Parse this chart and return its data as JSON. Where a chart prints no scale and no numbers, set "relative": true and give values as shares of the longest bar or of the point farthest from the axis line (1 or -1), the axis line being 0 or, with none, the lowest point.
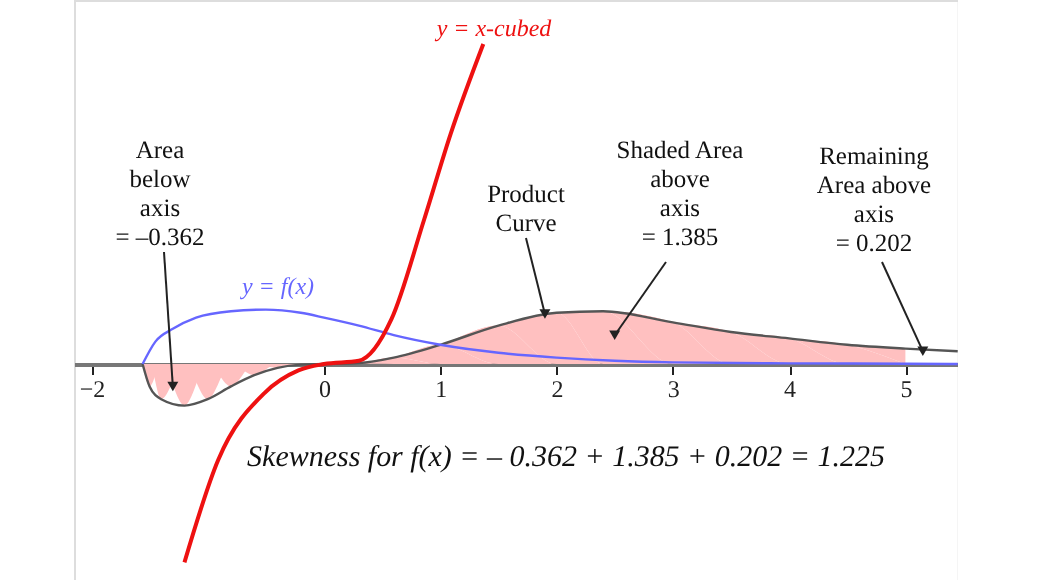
{
  "chart_data": {
    "type": "line",
    "relative": true,
    "xlim": [
      -2.15,
      5.45
    ],
    "xticks": [
      -2,
      0,
      1,
      2,
      3,
      4,
      5
    ],
    "grid": false,
    "marker": "none",
    "series": [
      {
        "type": "area",
        "color": "#ffc0c0",
        "x": [
          -1.56,
          -1.5,
          -1.4,
          -1.2,
          -1.0,
          -0.8,
          -0.6,
          -0.4,
          -0.2,
          0,
          0.3,
          0.6,
          1,
          1.5,
          2,
          2.4,
          3,
          3.5,
          4,
          4.5,
          5
        ],
        "values": [
          0,
          -0.07,
          -0.11,
          -0.13,
          -0.11,
          -0.07,
          -0.035,
          -0.012,
          -0.002,
          0,
          0.003,
          0.02,
          0.06,
          0.12,
          0.16,
          0.165,
          0.13,
          0.1,
          0.08,
          0.06,
          0.048
        ]
      },
      {
        "color": "#555555",
        "x": [
          -1.56,
          -1.5,
          -1.4,
          -1.2,
          -1.0,
          -0.8,
          -0.6,
          -0.4,
          -0.2,
          0,
          0.3,
          0.6,
          1,
          1.5,
          2,
          2.4,
          3,
          3.5,
          4,
          4.5,
          5,
          5.45
        ],
        "values": [
          0,
          -0.07,
          -0.11,
          -0.13,
          -0.11,
          -0.07,
          -0.035,
          -0.012,
          -0.002,
          0,
          0.003,
          0.02,
          0.06,
          0.12,
          0.16,
          0.165,
          0.13,
          0.1,
          0.08,
          0.06,
          0.048,
          0.04
        ]
      },
      {
        "color": "#6666ff",
        "x": [
          -1.56,
          -1.45,
          -1.3,
          -1.1,
          -0.8,
          -0.5,
          -0.2,
          0,
          0.3,
          0.6,
          1,
          1.5,
          2,
          2.5,
          3,
          4,
          5,
          5.45
        ],
        "values": [
          0,
          0.07,
          0.11,
          0.145,
          0.165,
          0.17,
          0.16,
          0.145,
          0.12,
          0.09,
          0.06,
          0.035,
          0.02,
          0.01,
          0.005,
          0.002,
          0.001,
          0
        ]
      },
      {
        "color": "#ee1111",
        "x": [
          -1.2,
          -0.91,
          -0.51,
          -0.22,
          0,
          0.3,
          0.58,
          0.86,
          1.09,
          1.37
        ],
        "values": [
          -0.62,
          -0.3,
          -0.09,
          -0.02,
          0,
          0.01,
          0.14,
          0.45,
          0.72,
          1.0
        ]
      }
    ],
    "annotations": [
      "y = x-cubed",
      "y = f(x)",
      {
        "text": "Area\nbelow\naxis\n= –0.362",
        "x": -1.3,
        "y": -0.07
      },
      {
        "text": "Product\nCurve",
        "x": 1.9,
        "y": 0.156
      },
      {
        "text": "Shaded Area\nabove\naxis\n= 1.385",
        "x": 2.5,
        "y": 0.09
      },
      {
        "text": "Remaining\nArea above\naxis\n= 0.202",
        "x": 5.15,
        "y": 0.04
      },
      "Skewness for f(x)  =  – 0.362 +  1.385  +  0.202 =  1.225"
    ]
  }
}
